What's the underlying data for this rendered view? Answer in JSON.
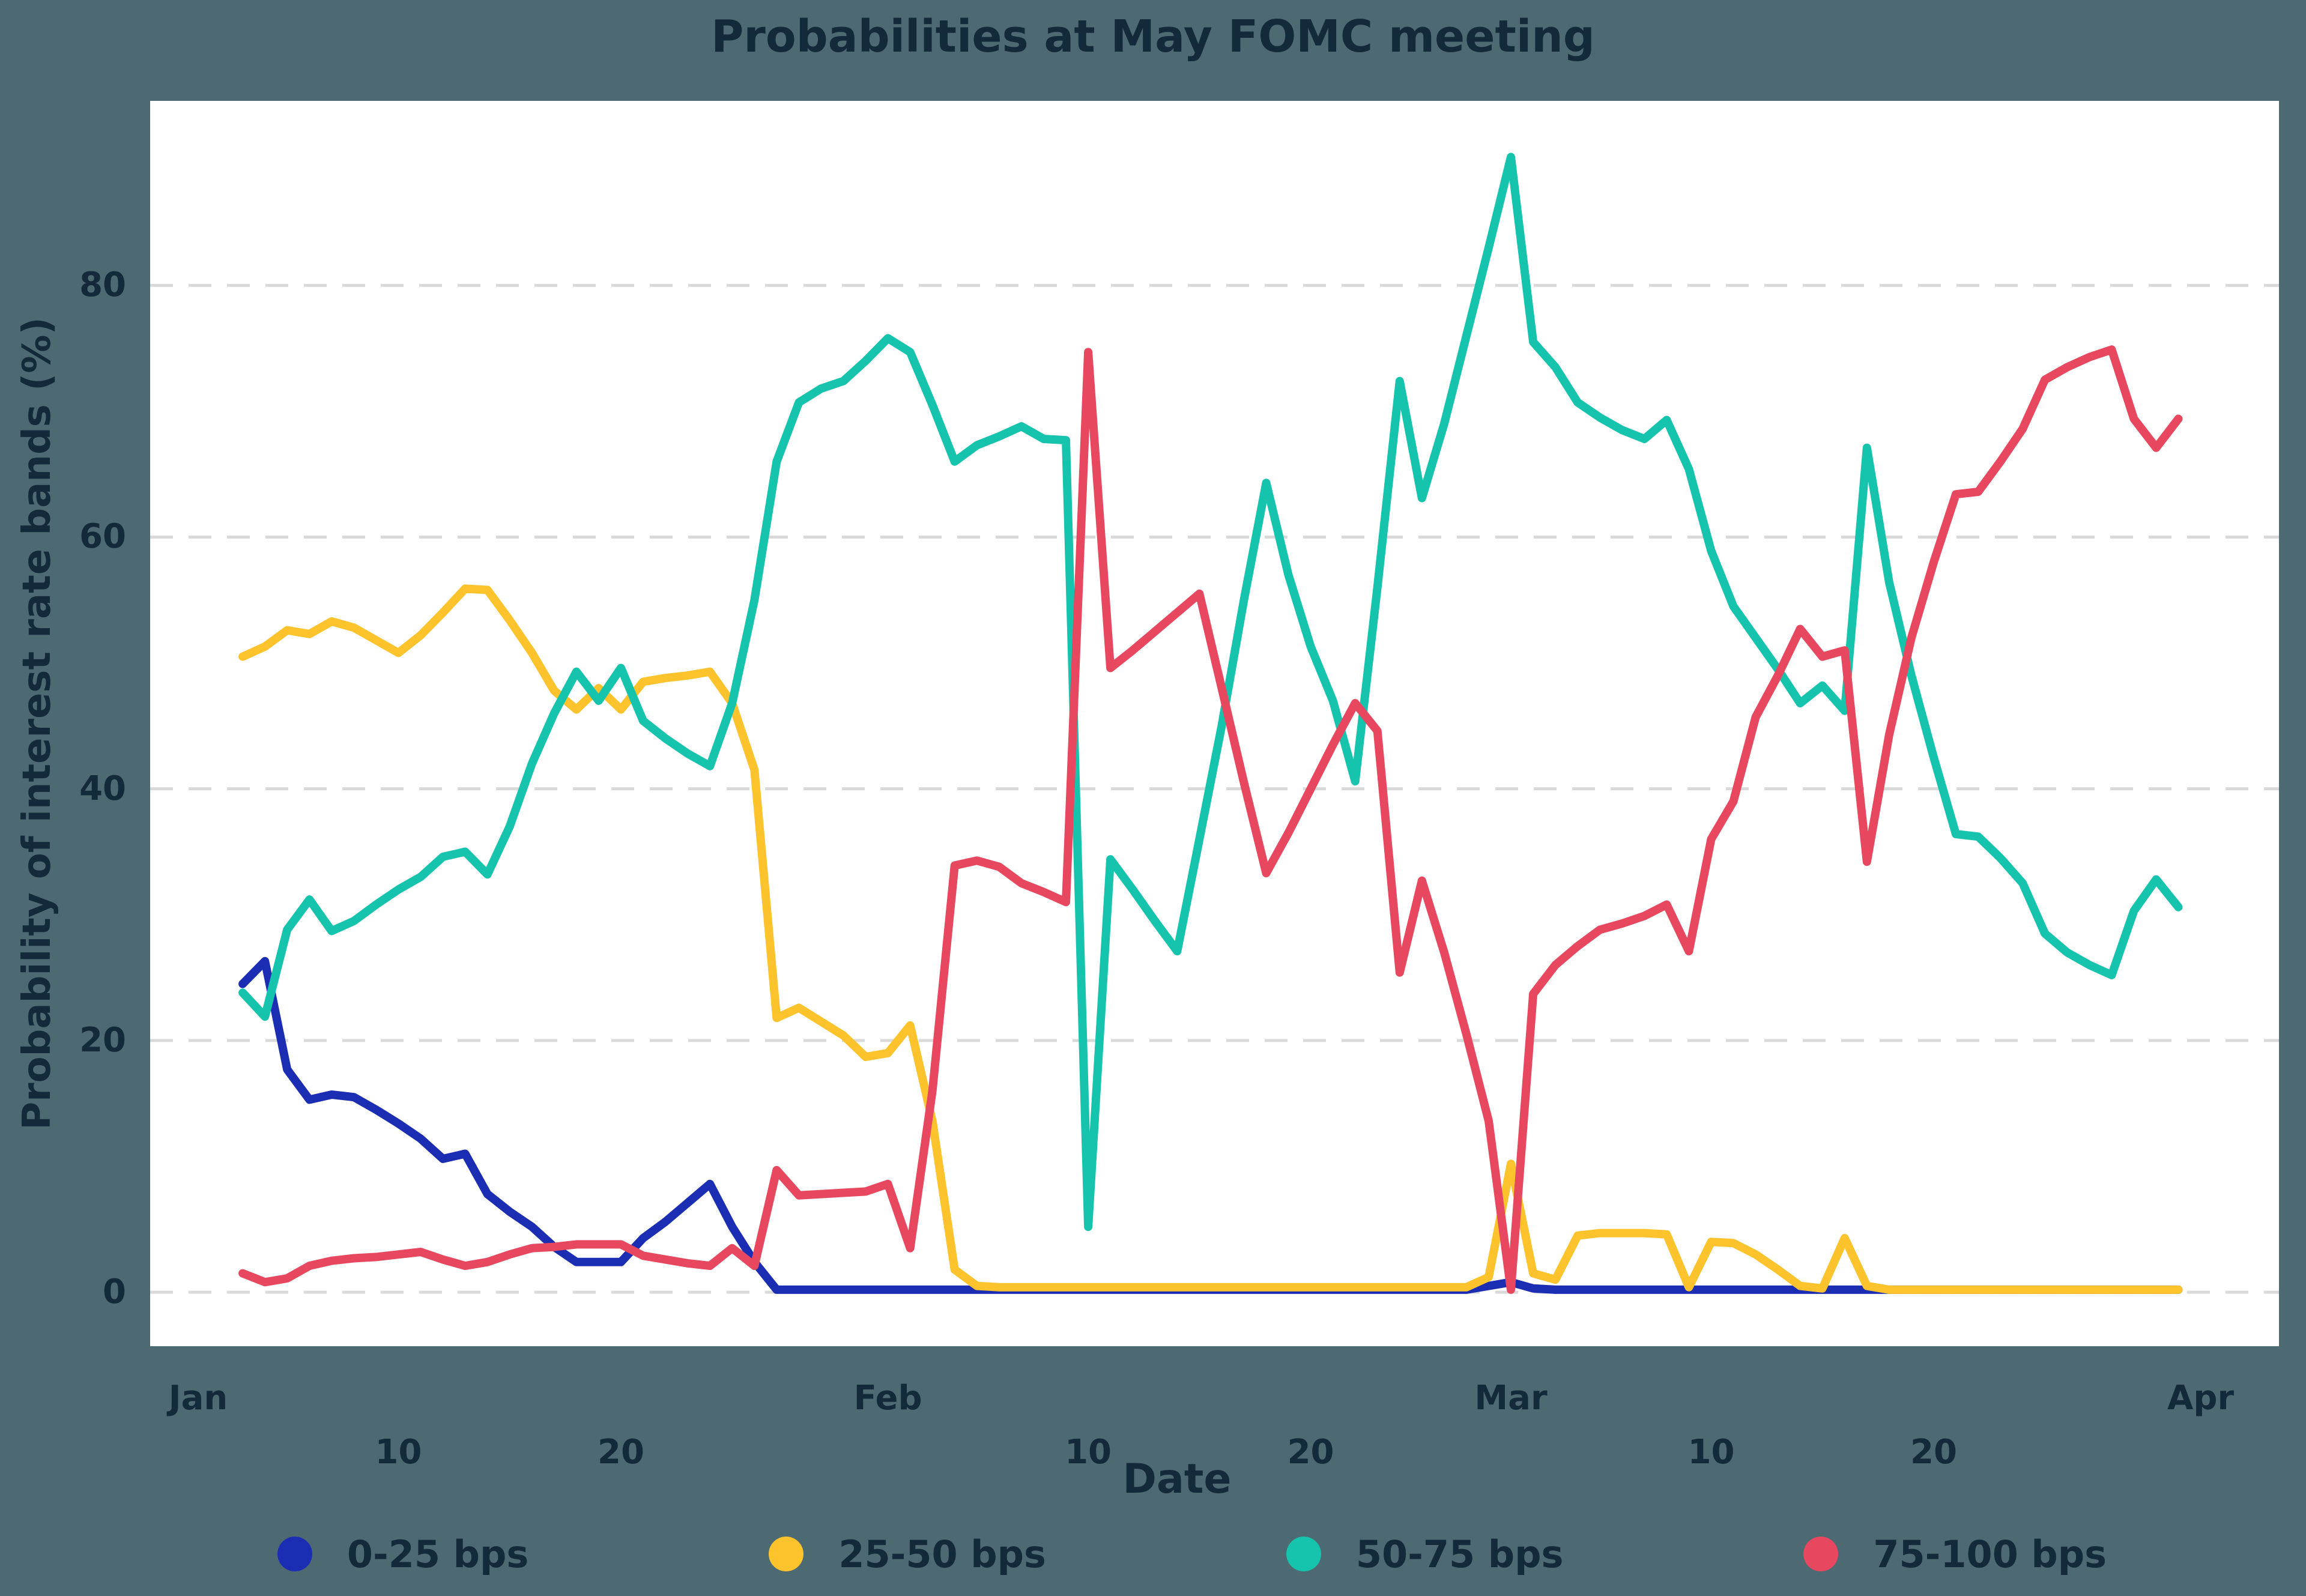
{
  "title": "Probabilities at May FOMC meeting",
  "colors": {
    "background": "#4d6972",
    "plot_background": "#ffffff",
    "text": "#132a3b",
    "gridline": "#d9d9d9",
    "series_0_25": "#1b2eb3",
    "series_25_50": "#fdc32d",
    "series_50_75": "#16c4ae",
    "series_75_100": "#e8485f"
  },
  "chart_data": {
    "type": "line",
    "title": "Probabilities at May FOMC meeting",
    "xlabel": "Date",
    "ylabel": "Probability of interest rate bands (%)",
    "grid": "horizontal-dashed",
    "legend_position": "bottom",
    "ylim": [
      0,
      93
    ],
    "yticks": [
      0,
      20,
      40,
      60,
      80
    ],
    "y_domain": [
      -4.29,
      94.66
    ],
    "x_domain_days": [
      -1.16,
      94.52
    ],
    "x_start_day": 3,
    "xticks": [
      {
        "day": 1,
        "label": "Jan",
        "row": 1
      },
      {
        "day": 10,
        "label": "10",
        "row": 2
      },
      {
        "day": 20,
        "label": "20",
        "row": 2
      },
      {
        "day": 32,
        "label": "Feb",
        "row": 1
      },
      {
        "day": 41,
        "label": "10",
        "row": 2
      },
      {
        "day": 51,
        "label": "20",
        "row": 2
      },
      {
        "day": 60,
        "label": "Mar",
        "row": 1
      },
      {
        "day": 69,
        "label": "10",
        "row": 2
      },
      {
        "day": 79,
        "label": "20",
        "row": 2
      },
      {
        "day": 91,
        "label": "Apr",
        "row": 1
      }
    ],
    "dates": [
      "Jan 3",
      "Jan 4",
      "Jan 5",
      "Jan 6",
      "Jan 7",
      "Jan 8",
      "Jan 9",
      "Jan 10",
      "Jan 11",
      "Jan 12",
      "Jan 13",
      "Jan 14",
      "Jan 15",
      "Jan 16",
      "Jan 17",
      "Jan 18",
      "Jan 19",
      "Jan 20",
      "Jan 21",
      "Jan 22",
      "Jan 23",
      "Jan 24",
      "Jan 25",
      "Jan 26",
      "Jan 27",
      "Jan 28",
      "Jan 29",
      "Jan 30",
      "Jan 31",
      "Feb 1",
      "Feb 2",
      "Feb 3",
      "Feb 4",
      "Feb 5",
      "Feb 6",
      "Feb 7",
      "Feb 8",
      "Feb 9",
      "Feb 10",
      "Feb 11",
      "Feb 12",
      "Feb 13",
      "Feb 14",
      "Feb 15",
      "Feb 16",
      "Feb 17",
      "Feb 18",
      "Feb 19",
      "Feb 20",
      "Feb 21",
      "Feb 22",
      "Feb 23",
      "Feb 24",
      "Feb 25",
      "Feb 26",
      "Feb 27",
      "Feb 28",
      "Mar 1",
      "Mar 2",
      "Mar 3",
      "Mar 4",
      "Mar 5",
      "Mar 6",
      "Mar 7",
      "Mar 8",
      "Mar 9",
      "Mar 10",
      "Mar 11",
      "Mar 12",
      "Mar 13",
      "Mar 14",
      "Mar 15",
      "Mar 16",
      "Mar 17",
      "Mar 18",
      "Mar 19",
      "Mar 20",
      "Mar 21",
      "Mar 22",
      "Mar 23",
      "Mar 24",
      "Mar 25",
      "Mar 26",
      "Mar 27",
      "Mar 28",
      "Mar 29",
      "Mar 30",
      "Mar 31"
    ],
    "series": [
      {
        "name": "0-25 bps",
        "color": "#1b2eb3",
        "values": [
          24.5,
          26.3,
          17.7,
          15.3,
          15.7,
          15.5,
          14.5,
          13.4,
          12.2,
          10.6,
          11,
          7.8,
          6.4,
          5.2,
          3.6,
          2.4,
          2.4,
          2.4,
          4.3,
          5.6,
          7.1,
          8.6,
          5.2,
          2.4,
          0.2,
          0.2,
          0.2,
          0.2,
          0.2,
          0.2,
          0.2,
          0.2,
          0.2,
          0.2,
          0.2,
          0.2,
          0.2,
          0.2,
          0.2,
          0.2,
          0.2,
          0.2,
          0.2,
          0.2,
          0.2,
          0.2,
          0.2,
          0.2,
          0.2,
          0.2,
          0.2,
          0.2,
          0.2,
          0.2,
          0.2,
          0.2,
          0.5,
          0.8,
          0.3,
          0.2,
          0.2,
          0.2,
          0.2,
          0.2,
          0.2,
          0.2,
          0.2,
          0.2,
          0.2,
          0.2,
          0.2,
          0.2,
          0.2,
          0.2,
          0.2,
          0.2,
          0.2,
          0.2,
          0.2,
          0.2,
          0.2,
          0.2,
          0.2,
          0.2,
          0.2,
          0.2,
          0.2,
          0.2
        ]
      },
      {
        "name": "25-50 bps",
        "color": "#fdc32d",
        "values": [
          50.5,
          51.3,
          52.6,
          52.3,
          53.3,
          52.8,
          51.8,
          50.8,
          52.2,
          54,
          55.9,
          55.8,
          53.4,
          50.8,
          47.8,
          46.3,
          48,
          46.3,
          48.5,
          48.8,
          49,
          49.3,
          46.8,
          41.5,
          21.8,
          22.6,
          21.5,
          20.4,
          18.7,
          19,
          21.2,
          13.6,
          1.8,
          0.5,
          0.4,
          0.4,
          0.4,
          0.4,
          0.4,
          0.4,
          0.4,
          0.4,
          0.4,
          0.4,
          0.4,
          0.4,
          0.4,
          0.4,
          0.4,
          0.4,
          0.4,
          0.4,
          0.4,
          0.4,
          0.4,
          0.4,
          1.2,
          10.2,
          1.5,
          1,
          4.5,
          4.7,
          4.7,
          4.7,
          4.6,
          0.4,
          4,
          3.9,
          3,
          1.8,
          0.5,
          0.3,
          4.3,
          0.5,
          0.2,
          0.2,
          0.2,
          0.2,
          0.2,
          0.2,
          0.2,
          0.2,
          0.2,
          0.2,
          0.2,
          0.2,
          0.2,
          0.2
        ]
      },
      {
        "name": "50-75 bps",
        "color": "#16c4ae",
        "values": [
          23.8,
          21.9,
          28.8,
          31.2,
          28.7,
          29.5,
          30.8,
          32,
          33,
          34.6,
          35,
          33.2,
          37,
          42,
          46,
          49.3,
          47,
          49.6,
          45.4,
          44,
          42.8,
          41.8,
          46.8,
          55,
          66,
          70.7,
          71.8,
          72.4,
          74,
          75.8,
          74.7,
          70.5,
          66,
          67.3,
          68,
          68.8,
          67.8,
          67.7,
          5.2,
          34.4,
          32,
          29.5,
          27.1,
          36,
          45,
          55,
          64.3,
          57,
          51.3,
          47,
          40.6,
          56,
          72.4,
          63.1,
          69,
          76,
          83,
          90.2,
          75.5,
          73.5,
          70.7,
          69.5,
          68.5,
          67.8,
          69.3,
          65.4,
          58.9,
          54.5,
          52,
          49.5,
          46.8,
          48.2,
          46.2,
          67.1,
          56.4,
          49,
          42.5,
          36.4,
          36.2,
          34.5,
          32.5,
          28.5,
          27,
          26,
          25.2,
          30.3,
          32.8,
          30.6
        ]
      },
      {
        "name": "75-100 bps",
        "color": "#e8485f",
        "values": [
          1.5,
          0.8,
          1.1,
          2.1,
          2.5,
          2.7,
          2.8,
          3,
          3.2,
          2.6,
          2.1,
          2.4,
          3,
          3.5,
          3.6,
          3.8,
          3.8,
          3.8,
          2.9,
          2.6,
          2.3,
          2.1,
          3.5,
          2.1,
          9.7,
          7.7,
          7.8,
          7.9,
          8,
          8.6,
          3.5,
          16,
          33.9,
          34.3,
          33.8,
          32.5,
          31.8,
          31,
          74.7,
          49.6,
          51,
          52.5,
          54,
          55.5,
          48,
          40.5,
          33.3,
          36.5,
          40,
          43.5,
          46.8,
          44.6,
          25.4,
          32.7,
          27,
          20.5,
          13.6,
          0.2,
          23.7,
          26,
          27.5,
          28.8,
          29.3,
          29.9,
          30.8,
          27.1,
          36,
          39,
          45.7,
          49,
          52.7,
          50.5,
          51,
          34.2,
          44.3,
          52,
          58,
          63.4,
          63.6,
          66,
          68.6,
          72.5,
          73.5,
          74.3,
          74.9,
          69.4,
          67.1,
          69.4
        ]
      }
    ]
  }
}
